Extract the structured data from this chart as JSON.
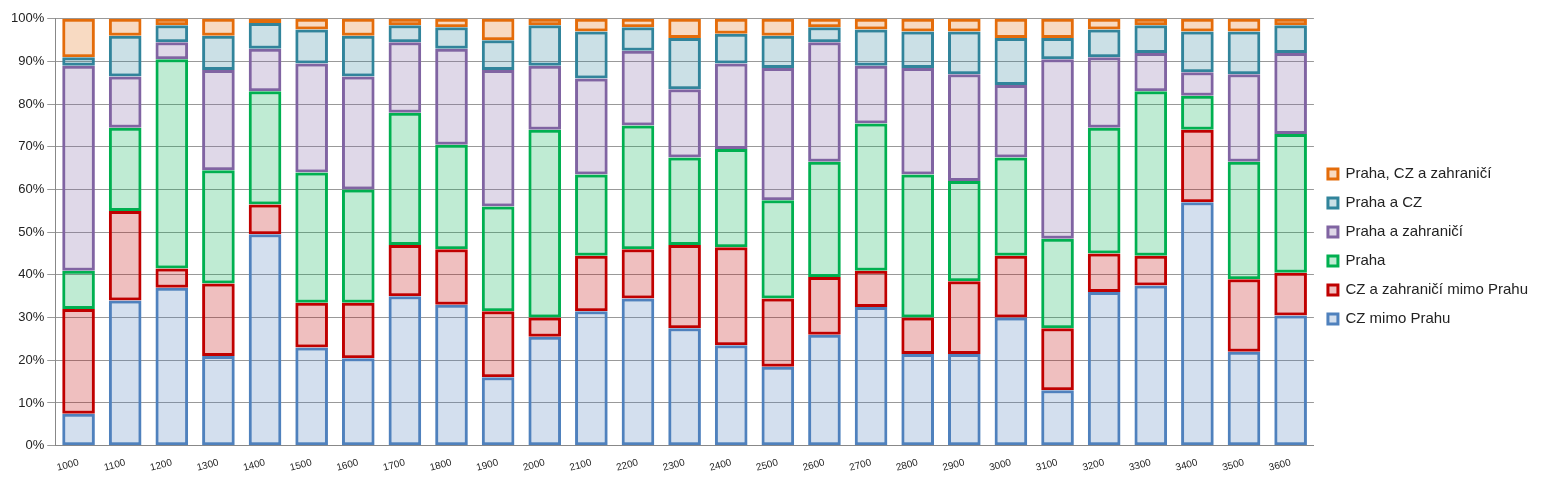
{
  "chart_data": {
    "type": "bar",
    "stacked": true,
    "categories": [
      "1000",
      "1100",
      "1200",
      "1300",
      "1400",
      "1500",
      "1600",
      "1700",
      "1800",
      "1900",
      "2000",
      "2100",
      "2200",
      "2300",
      "2400",
      "2500",
      "2600",
      "2700",
      "2800",
      "2900",
      "3000",
      "3100",
      "3200",
      "3300",
      "3400",
      "3500",
      "3600"
    ],
    "series": [
      {
        "name": "CZ mimo Prahu",
        "color": "#4f81bd",
        "values": [
          7.5,
          34,
          37,
          21,
          49.5,
          23,
          20.5,
          35,
          33,
          16,
          25.5,
          31.5,
          34.5,
          27.5,
          23.5,
          18.5,
          26,
          32.5,
          21.5,
          21.5,
          30,
          13,
          36,
          37.5,
          57,
          22,
          30.5
        ]
      },
      {
        "name": "CZ a zahraničí mimo Prahu",
        "color": "#c00000",
        "values": [
          24.5,
          21,
          4.5,
          17,
          7,
          10.5,
          13,
          12,
          13,
          15.5,
          4.5,
          13,
          11.5,
          19.5,
          23,
          16,
          13.5,
          8.5,
          8.5,
          17,
          14.5,
          14.5,
          9,
          7,
          17,
          17,
          10
        ]
      },
      {
        "name": "Praha",
        "color": "#00b050",
        "values": [
          9,
          19.5,
          49,
          26.5,
          26.5,
          30.5,
          26.5,
          31,
          24.5,
          24.5,
          44,
          19,
          29,
          20.5,
          23,
          23,
          27,
          34.5,
          33.5,
          23.5,
          23,
          21,
          29.5,
          38.5,
          8,
          27.5,
          32.5
        ]
      },
      {
        "name": "Praha a zahraničí",
        "color": "#8064a2",
        "values": [
          48,
          12,
          4,
          23.5,
          10,
          25.5,
          26.5,
          16.5,
          22.5,
          32,
          15,
          22.5,
          17.5,
          16,
          20,
          31,
          28,
          13.5,
          25,
          25,
          17,
          42,
          16.5,
          9,
          5.5,
          20.5,
          19
        ]
      },
      {
        "name": "Praha a CZ",
        "color": "#31849b",
        "values": [
          2,
          9.5,
          4,
          8,
          6,
          8,
          9.5,
          4,
          5,
          7,
          9.5,
          11,
          5.5,
          12,
          7,
          7.5,
          3.5,
          8.5,
          8.5,
          10,
          11,
          5,
          6.5,
          6.5,
          9.5,
          10,
          6.5
        ]
      },
      {
        "name": "Praha, CZ a zahraničí",
        "color": "#e46c0a",
        "values": [
          9,
          4,
          1.5,
          4,
          1,
          2.5,
          4,
          1.5,
          2,
          5,
          1.5,
          3,
          2,
          4.5,
          3.5,
          4,
          2,
          2.5,
          3,
          3,
          4.5,
          4.5,
          2.5,
          1.5,
          3,
          3,
          1.5
        ]
      }
    ],
    "ylim": [
      0,
      100
    ],
    "yticks": [
      {
        "value": 0,
        "label": "0%"
      },
      {
        "value": 10,
        "label": "10%"
      },
      {
        "value": 20,
        "label": "20%"
      },
      {
        "value": 30,
        "label": "30%"
      },
      {
        "value": 40,
        "label": "40%"
      },
      {
        "value": 50,
        "label": "50%"
      },
      {
        "value": 60,
        "label": "60%"
      },
      {
        "value": 70,
        "label": "70%"
      },
      {
        "value": 80,
        "label": "80%"
      },
      {
        "value": 90,
        "label": "90%"
      },
      {
        "value": 100,
        "label": "100%"
      }
    ],
    "grid": "y",
    "legend": "right"
  }
}
